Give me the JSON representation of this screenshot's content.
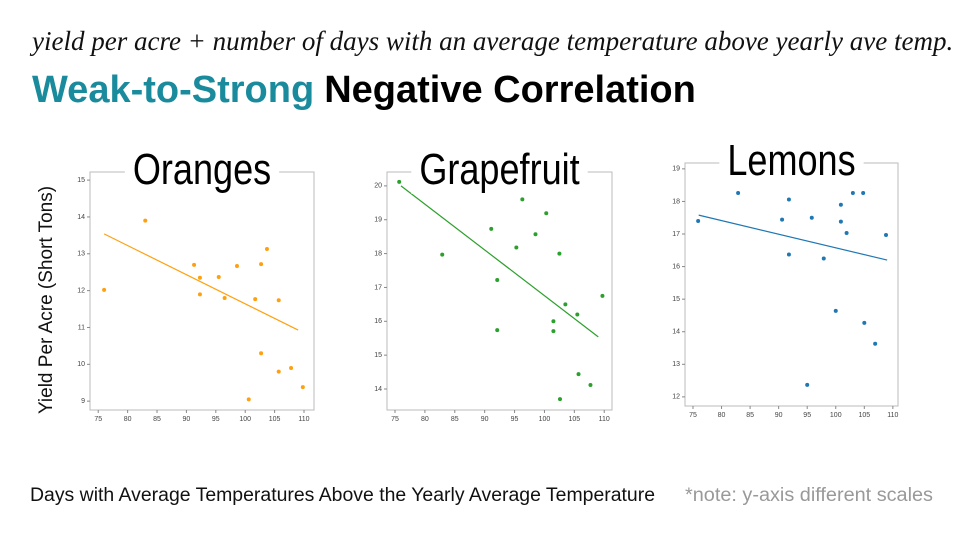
{
  "header": {
    "subtitle": "yield per acre + number of days with an average temperature above yearly ave temp.",
    "highlight": "Weak-to-Strong",
    "rest": "Negative Correlation"
  },
  "y_label": "Yield Per Acre (Short Tons)",
  "x_label": "Days with Average Temperatures Above the Yearly Average Temperature",
  "note": "*note: y-axis different scales",
  "chart_data": [
    {
      "type": "scatter",
      "title": "Oranges",
      "color": "#ffa00f",
      "x": [
        76,
        83,
        91.3,
        92.3,
        92.3,
        95.5,
        96.5,
        98.6,
        100.6,
        101.7,
        102.7,
        103.7,
        102.7,
        105.7,
        105.7,
        107.8,
        109.8
      ],
      "values": [
        12.02,
        13.9,
        12.7,
        12.35,
        11.9,
        12.37,
        11.8,
        12.67,
        9.05,
        11.77,
        12.72,
        13.13,
        10.3,
        11.74,
        9.8,
        9.9,
        9.38
      ],
      "trend": {
        "x": [
          76,
          109
        ],
        "values": [
          13.54,
          10.93
        ]
      },
      "xlim": [
        73.6,
        111.7
      ],
      "ylim": [
        8.76,
        15.22
      ],
      "xticks": [
        75,
        80,
        85,
        90,
        95,
        100,
        105,
        110
      ],
      "yticks": [
        9,
        10,
        11,
        12,
        13,
        14,
        15
      ]
    },
    {
      "type": "scatter",
      "title": "Grapefruit",
      "color": "#2ca02c",
      "x": [
        75.7,
        82.9,
        91.1,
        92.1,
        92.1,
        95.3,
        96.3,
        98.5,
        100.3,
        101.5,
        101.5,
        102.5,
        102.6,
        103.5,
        105.5,
        105.7,
        107.7,
        109.7
      ],
      "values": [
        20.12,
        17.97,
        18.73,
        17.22,
        15.74,
        18.18,
        19.6,
        18.57,
        19.19,
        16.0,
        15.71,
        18.0,
        13.7,
        16.5,
        16.2,
        14.44,
        14.12,
        16.75
      ],
      "trend": {
        "x": [
          76,
          109
        ],
        "values": [
          20.0,
          15.54
        ]
      },
      "xlim": [
        73.66,
        111.3
      ],
      "ylim": [
        13.38,
        20.41
      ],
      "xticks": [
        75,
        80,
        85,
        90,
        95,
        100,
        105,
        110
      ],
      "yticks": [
        14,
        15,
        16,
        17,
        18,
        19,
        20
      ]
    },
    {
      "type": "scatter",
      "title": "Lemons",
      "color": "#1f77b4",
      "x": [
        75.9,
        82.9,
        90.6,
        91.8,
        91.8,
        95,
        95.8,
        97.9,
        100,
        100.9,
        100.9,
        101.9,
        103,
        104.8,
        105,
        106.9,
        108.8
      ],
      "values": [
        17.4,
        18.26,
        17.44,
        18.06,
        16.37,
        12.37,
        17.5,
        16.25,
        14.64,
        17.9,
        17.38,
        17.03,
        18.26,
        18.26,
        14.27,
        13.63,
        16.97
      ],
      "trend": {
        "x": [
          76,
          109
        ],
        "values": [
          17.58,
          16.2
        ]
      },
      "xlim": [
        73.6,
        110.9
      ],
      "ylim": [
        11.72,
        19.18
      ],
      "xticks": [
        75,
        80,
        85,
        90,
        95,
        100,
        105,
        110
      ],
      "yticks": [
        12,
        13,
        14,
        15,
        16,
        17,
        18,
        19
      ]
    }
  ]
}
